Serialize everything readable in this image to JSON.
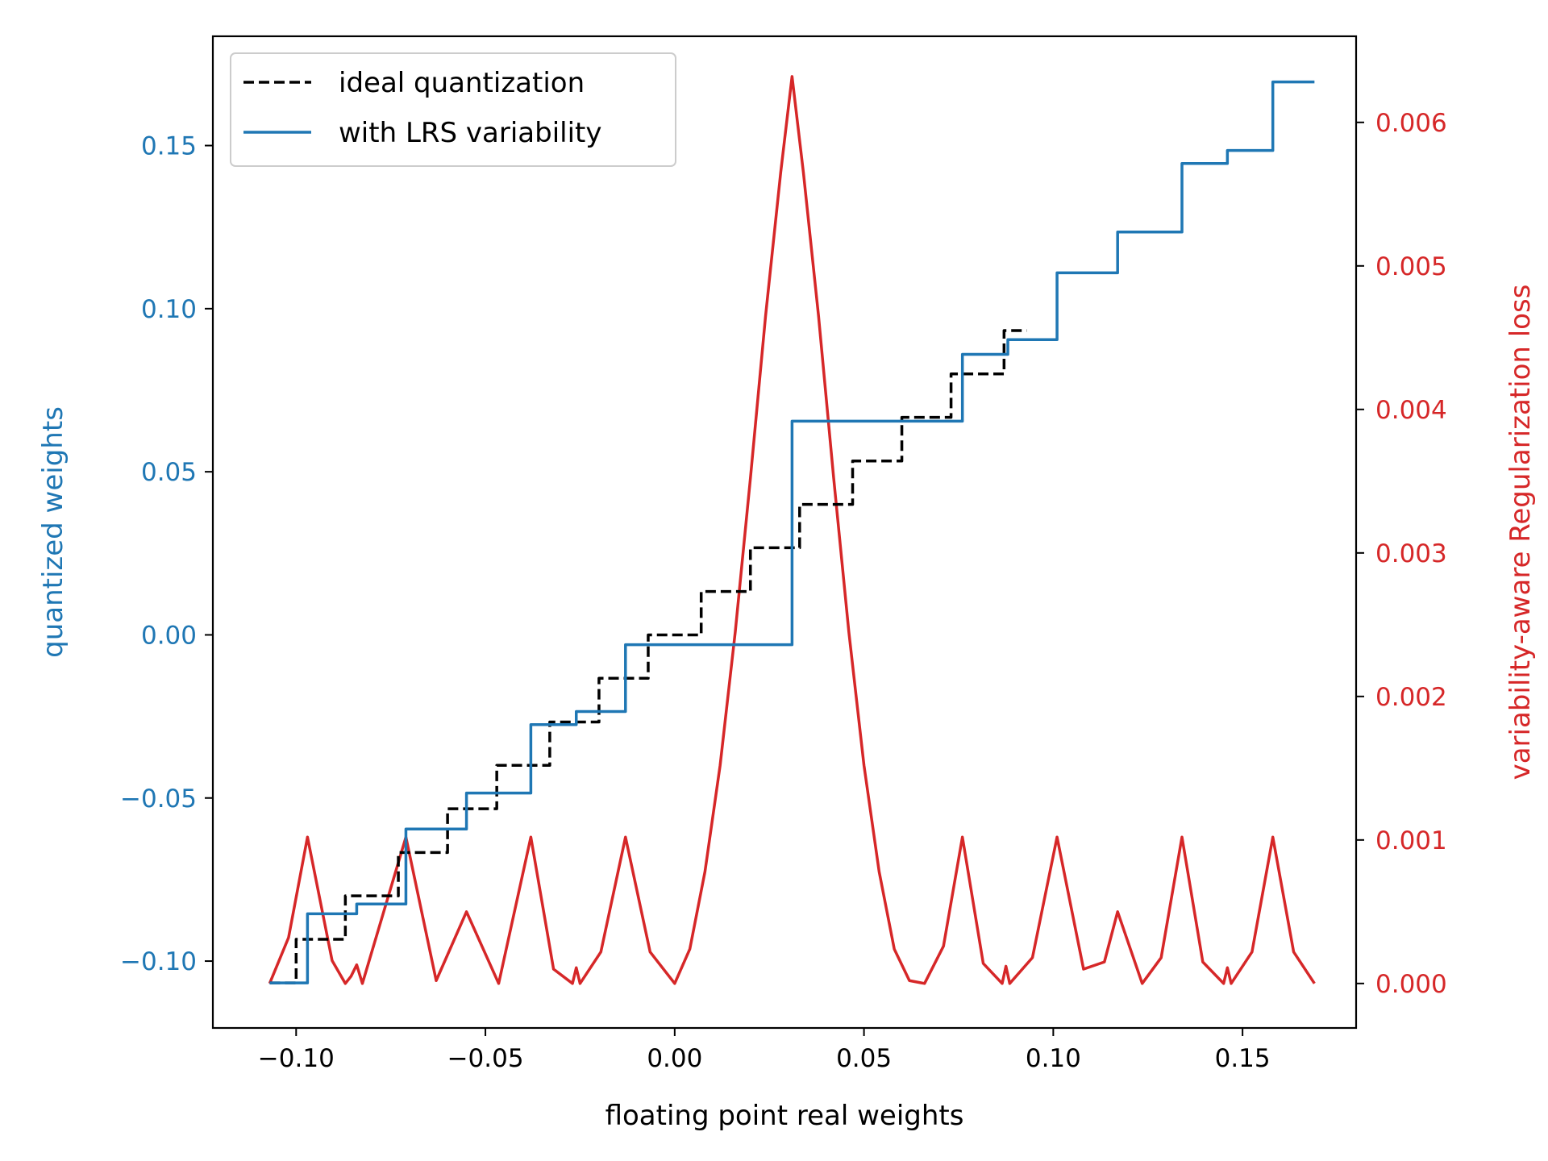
{
  "chart_data": {
    "type": "line",
    "xlabel": "floating point real weights",
    "ylabel_left": "quantized weights",
    "ylabel_right": "variability-aware Regularization loss",
    "xlim": [
      -0.122,
      0.18
    ],
    "ylim_left": [
      -0.1205,
      0.1835
    ],
    "ylim_right": [
      -0.00031,
      0.0066
    ],
    "x_ticks": [
      -0.1,
      -0.05,
      0.0,
      0.05,
      0.1,
      0.15
    ],
    "x_tick_labels": [
      "−0.10",
      "−0.05",
      "0.00",
      "0.05",
      "0.10",
      "0.15"
    ],
    "y_left_ticks": [
      -0.1,
      -0.05,
      0.0,
      0.05,
      0.1,
      0.15
    ],
    "y_left_tick_labels": [
      "−0.10",
      "−0.05",
      "0.00",
      "0.05",
      "0.10",
      "0.15"
    ],
    "y_right_ticks": [
      0.0,
      0.001,
      0.002,
      0.003,
      0.004,
      0.005,
      0.006
    ],
    "y_right_tick_labels": [
      "0.000",
      "0.001",
      "0.002",
      "0.003",
      "0.004",
      "0.005",
      "0.006"
    ],
    "legend": {
      "position": "upper-left",
      "entries": [
        "ideal quantization",
        "with LRS variability"
      ]
    },
    "colors": {
      "left_axis": "#1f77b4",
      "right_axis": "#d62728",
      "ideal": "#000000"
    },
    "series": [
      {
        "name": "ideal quantization",
        "axis": "left",
        "style": "dashed-step",
        "x": [
          -0.107,
          -0.1,
          -0.1,
          -0.087,
          -0.087,
          -0.073,
          -0.073,
          -0.06,
          -0.06,
          -0.047,
          -0.047,
          -0.033,
          -0.033,
          -0.02,
          -0.02,
          -0.007,
          -0.007,
          0.007,
          0.007,
          0.02,
          0.02,
          0.033,
          0.033,
          0.047,
          0.047,
          0.06,
          0.06,
          0.073,
          0.073,
          0.087,
          0.087,
          0.093
        ],
        "y": [
          -0.1067,
          -0.1067,
          -0.0933,
          -0.0933,
          -0.08,
          -0.08,
          -0.0667,
          -0.0667,
          -0.0533,
          -0.0533,
          -0.04,
          -0.04,
          -0.0267,
          -0.0267,
          -0.0133,
          -0.0133,
          0.0,
          0.0,
          0.0133,
          0.0133,
          0.0267,
          0.0267,
          0.04,
          0.04,
          0.0533,
          0.0533,
          0.0667,
          0.0667,
          0.08,
          0.08,
          0.0933,
          0.0933
        ]
      },
      {
        "name": "with LRS variability",
        "axis": "left",
        "style": "step",
        "x": [
          -0.107,
          -0.097,
          -0.097,
          -0.084,
          -0.084,
          -0.071,
          -0.071,
          -0.055,
          -0.055,
          -0.038,
          -0.038,
          -0.026,
          -0.026,
          -0.013,
          -0.013,
          0.031,
          0.031,
          0.076,
          0.076,
          0.088,
          0.088,
          0.101,
          0.101,
          0.117,
          0.117,
          0.134,
          0.134,
          0.146,
          0.146,
          0.158,
          0.158,
          0.169
        ],
        "y": [
          -0.1067,
          -0.1067,
          -0.0855,
          -0.0855,
          -0.0825,
          -0.0825,
          -0.0595,
          -0.0595,
          -0.0485,
          -0.0485,
          -0.0275,
          -0.0275,
          -0.0235,
          -0.0235,
          -0.003,
          -0.003,
          0.0655,
          0.0655,
          0.086,
          0.086,
          0.0905,
          0.0905,
          0.111,
          0.111,
          0.1235,
          0.1235,
          0.1445,
          0.1445,
          0.1485,
          0.1485,
          0.1695,
          0.1695
        ]
      },
      {
        "name": "variability-aware Regularization loss",
        "axis": "right",
        "style": "curve",
        "x": [
          -0.107,
          -0.102,
          -0.097,
          -0.0905,
          -0.087,
          -0.0855,
          -0.084,
          -0.0825,
          -0.071,
          -0.063,
          -0.055,
          -0.0465,
          -0.038,
          -0.032,
          -0.027,
          -0.026,
          -0.025,
          -0.0195,
          -0.013,
          -0.0065,
          0.0,
          0.004,
          0.008,
          0.012,
          0.016,
          0.02,
          0.024,
          0.028,
          0.031,
          0.034,
          0.038,
          0.042,
          0.046,
          0.05,
          0.054,
          0.058,
          0.062,
          0.066,
          0.071,
          0.076,
          0.0815,
          0.0865,
          0.0875,
          0.0885,
          0.0945,
          0.101,
          0.108,
          0.1135,
          0.117,
          0.1235,
          0.1285,
          0.134,
          0.1395,
          0.145,
          0.146,
          0.147,
          0.1525,
          0.158,
          0.1635,
          0.169
        ],
        "y": [
          0.0,
          0.00032,
          0.00102,
          0.00016,
          0.0,
          5e-05,
          0.00013,
          0.0,
          0.00102,
          2e-05,
          0.0005,
          0.0,
          0.00102,
          0.0001,
          0.0,
          0.00011,
          0.0,
          0.00022,
          0.00102,
          0.00022,
          0.0,
          0.00024,
          0.00078,
          0.00152,
          0.00245,
          0.00352,
          0.00465,
          0.00565,
          0.00632,
          0.00565,
          0.00465,
          0.00352,
          0.00245,
          0.00152,
          0.00078,
          0.00024,
          2e-05,
          0.0,
          0.00026,
          0.00102,
          0.00014,
          0.0,
          0.00012,
          0.0,
          0.00018,
          0.00102,
          0.0001,
          0.00015,
          0.0005,
          0.0,
          0.00018,
          0.00102,
          0.00015,
          0.0,
          0.00011,
          0.0,
          0.00022,
          0.00102,
          0.00022,
          0.0
        ]
      }
    ]
  }
}
